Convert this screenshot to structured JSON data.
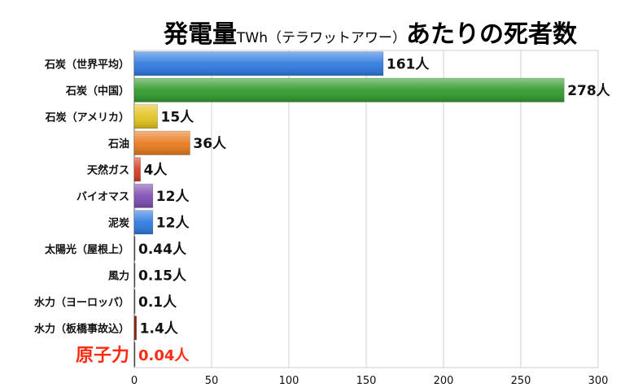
{
  "title": {
    "part1": "発電量",
    "part2": "TWh（テラワットアワー）",
    "part3": "あたりの死者数"
  },
  "colors": {
    "highlight": "#ff2a12",
    "text": "#111111",
    "grid": "#cfcfcf",
    "axis": "#666666"
  },
  "chart_data": {
    "type": "bar",
    "orientation": "horizontal",
    "title": "発電量TWh（テラワットアワー）あたりの死者数",
    "xlim": [
      0,
      300
    ],
    "xticks": [
      0,
      50,
      100,
      150,
      200,
      250,
      300
    ],
    "grid": true,
    "value_suffix": "人",
    "categories": [
      "石炭（世界平均）",
      "石炭（中国）",
      "石炭（アメリカ）",
      "石油",
      "天然ガス",
      "バイオマス",
      "泥炭",
      "太陽光（屋根上）",
      "風力",
      "水力（ヨーロッパ）",
      "水力（板橋事故込）",
      "原子力"
    ],
    "values": [
      161,
      278,
      15,
      36,
      4,
      12,
      12,
      0.44,
      0.15,
      0.1,
      1.4,
      0.04
    ],
    "value_labels": [
      "161人",
      "278人",
      "15人",
      "36人",
      "4人",
      "12人",
      "12人",
      "0.44人",
      "0.15人",
      "0.1人",
      "1.4人",
      "0.04人"
    ],
    "bar_colors": [
      "#2b78e0",
      "#2f9a2a",
      "#e2c21c",
      "#e8781a",
      "#d83a1a",
      "#7d4bb0",
      "#2b78e0",
      "#555555",
      "#555555",
      "#555555",
      "#8a2a12",
      "#555555"
    ],
    "highlight_category": "原子力"
  }
}
